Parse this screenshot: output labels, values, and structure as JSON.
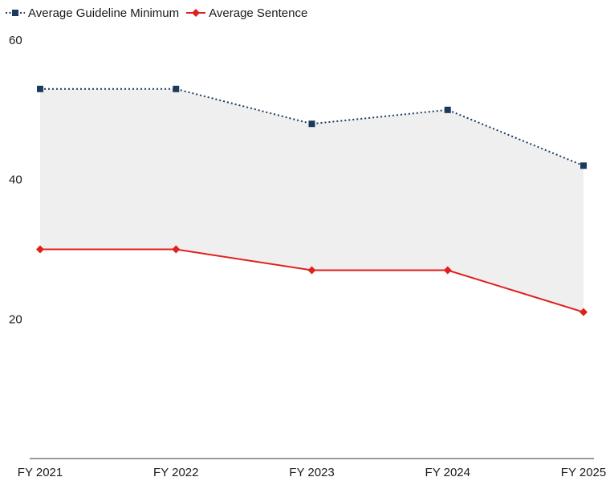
{
  "chart_data": {
    "type": "line",
    "categories": [
      "FY 2021",
      "FY 2022",
      "FY 2023",
      "FY 2024",
      "FY 2025"
    ],
    "series": [
      {
        "name": "Average Guideline Minimum",
        "values": [
          53,
          53,
          48,
          50,
          42
        ],
        "color": "#1c3a5e",
        "marker": "square",
        "line_style": "dotted"
      },
      {
        "name": "Average Sentence",
        "values": [
          30,
          30,
          27,
          27,
          21
        ],
        "color": "#e0201c",
        "marker": "diamond",
        "line_style": "solid"
      }
    ],
    "shaded_area_between_series": true,
    "shade_color": "#efefef",
    "ylim": [
      0,
      60
    ],
    "yticks": [
      20,
      40,
      60
    ],
    "grid": false,
    "legend_position": "top-left",
    "title": "",
    "xlabel": "",
    "ylabel": ""
  }
}
